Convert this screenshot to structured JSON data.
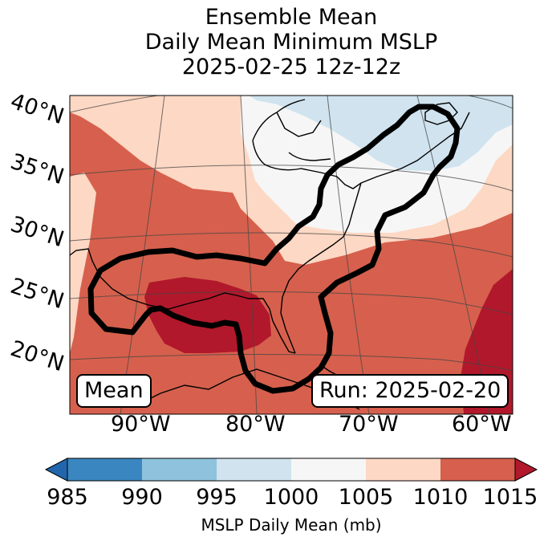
{
  "title": {
    "line1": "Ensemble Mean",
    "line2": "Daily Mean Minimum MSLP",
    "line3": "2025-02-25 12z-12z"
  },
  "map": {
    "latitude_labels": [
      "40°N",
      "35°N",
      "30°N",
      "25°N",
      "20°N"
    ],
    "longitude_labels": [
      "90°W",
      "80°W",
      "70°W",
      "60°W"
    ],
    "mean_label": "Mean",
    "run_label": "Run: 2025-02-20",
    "fill_colors": {
      "985-990": "#3a86c0",
      "990-995": "#8fc2dd",
      "995-1000": "#d0e3ef",
      "1000-1005": "#f6f6f6",
      "1005-1010": "#fdd8c4",
      "1010-1015": "#d6604d",
      "above-1015": "#b2182b"
    }
  },
  "colorbar": {
    "ticks": [
      "985",
      "990",
      "995",
      "1000",
      "1005",
      "1010",
      "1015"
    ],
    "label": "MSLP Daily Mean (mb)",
    "under_color": "#2166ac",
    "over_color": "#b2182b"
  }
}
